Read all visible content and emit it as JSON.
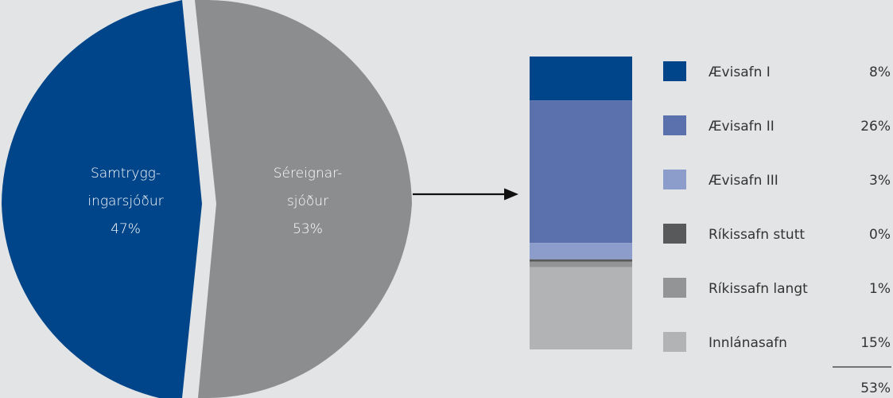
{
  "chart_data": [
    {
      "type": "pie",
      "slices": [
        {
          "label_lines": [
            "Samtrygg-",
            "ingarsjóður"
          ],
          "value_label": "47%",
          "value": 47,
          "color": "#004589"
        },
        {
          "label_lines": [
            "Séreignar-",
            "sjóður"
          ],
          "value_label": "53%",
          "value": 53,
          "color": "#8c8d8f"
        }
      ]
    },
    {
      "type": "bar",
      "stacked": true,
      "series": [
        {
          "name": "Ævisafn I",
          "value": 8,
          "value_label": "8%",
          "color": "#004589"
        },
        {
          "name": "Ævisafn II",
          "value": 26,
          "value_label": "26%",
          "color": "#5a71ad"
        },
        {
          "name": "Ævisafn III",
          "value": 3,
          "value_label": "3%",
          "color": "#8d9dcb"
        },
        {
          "name": "Ríkissafn stutt",
          "value": 0,
          "value_label": "0%",
          "color": "#58595b"
        },
        {
          "name": "Ríkissafn langt",
          "value": 1,
          "value_label": "1%",
          "color": "#939496"
        },
        {
          "name": "Innlánasafn",
          "value": 15,
          "value_label": "15%",
          "color": "#b1b3b5"
        }
      ],
      "total": 53,
      "total_label": "53%",
      "legend": "right"
    }
  ]
}
